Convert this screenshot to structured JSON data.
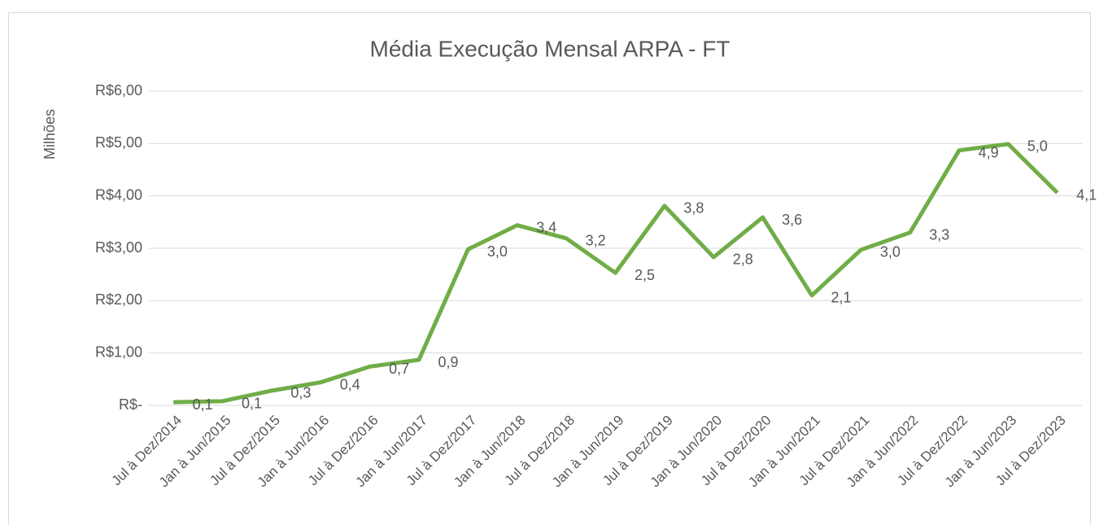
{
  "chart_data": {
    "type": "line",
    "title": "Média Execução Mensal ARPA - FT",
    "y_label": "Milhões",
    "categories": [
      "Jul à Dez/2014",
      "Jan à Jun/2015",
      "Jul à Dez/2015",
      "Jan à Jun/2016",
      "Jul à Dez/2016",
      "Jan à Jun/2017",
      "Jul à Dez/2017",
      "Jan à Jun/2018",
      "Jul à Dez/2018",
      "Jan à Jun/2019",
      "Jul à Dez/2019",
      "Jan à Jun/2020",
      "Jul à Dez/2020",
      "Jan à Jun/2021",
      "Jul à Dez/2021",
      "Jan à Jun/2022",
      "Jul à Dez/2022",
      "Jan à Jun/2023",
      "Jul à Dez/2023"
    ],
    "series": [
      {
        "name": "Média Execução Mensal",
        "color": "#70ad47",
        "values": [
          0.06,
          0.08,
          0.28,
          0.44,
          0.74,
          0.87,
          2.98,
          3.44,
          3.19,
          2.53,
          3.81,
          2.83,
          3.59,
          2.1,
          2.97,
          3.3,
          4.87,
          4.99,
          4.06
        ],
        "value_labels": [
          "0,1",
          "0,1",
          "0,3",
          "0,4",
          "0,7",
          "0,9",
          "3,0",
          "3,4",
          "3,2",
          "2,5",
          "3,8",
          "2,8",
          "3,6",
          "2,1",
          "3,0",
          "3,3",
          "4,9",
          "5,0",
          "4,1"
        ]
      }
    ],
    "ylim": [
      0,
      6
    ],
    "yticks": [
      {
        "value": 0,
        "label": "R$-"
      },
      {
        "value": 1,
        "label": "R$1,00"
      },
      {
        "value": 2,
        "label": "R$2,00"
      },
      {
        "value": 3,
        "label": "R$3,00"
      },
      {
        "value": 4,
        "label": "R$4,00"
      },
      {
        "value": 5,
        "label": "R$5,00"
      },
      {
        "value": 6,
        "label": "R$6,00"
      }
    ],
    "grid": true
  }
}
